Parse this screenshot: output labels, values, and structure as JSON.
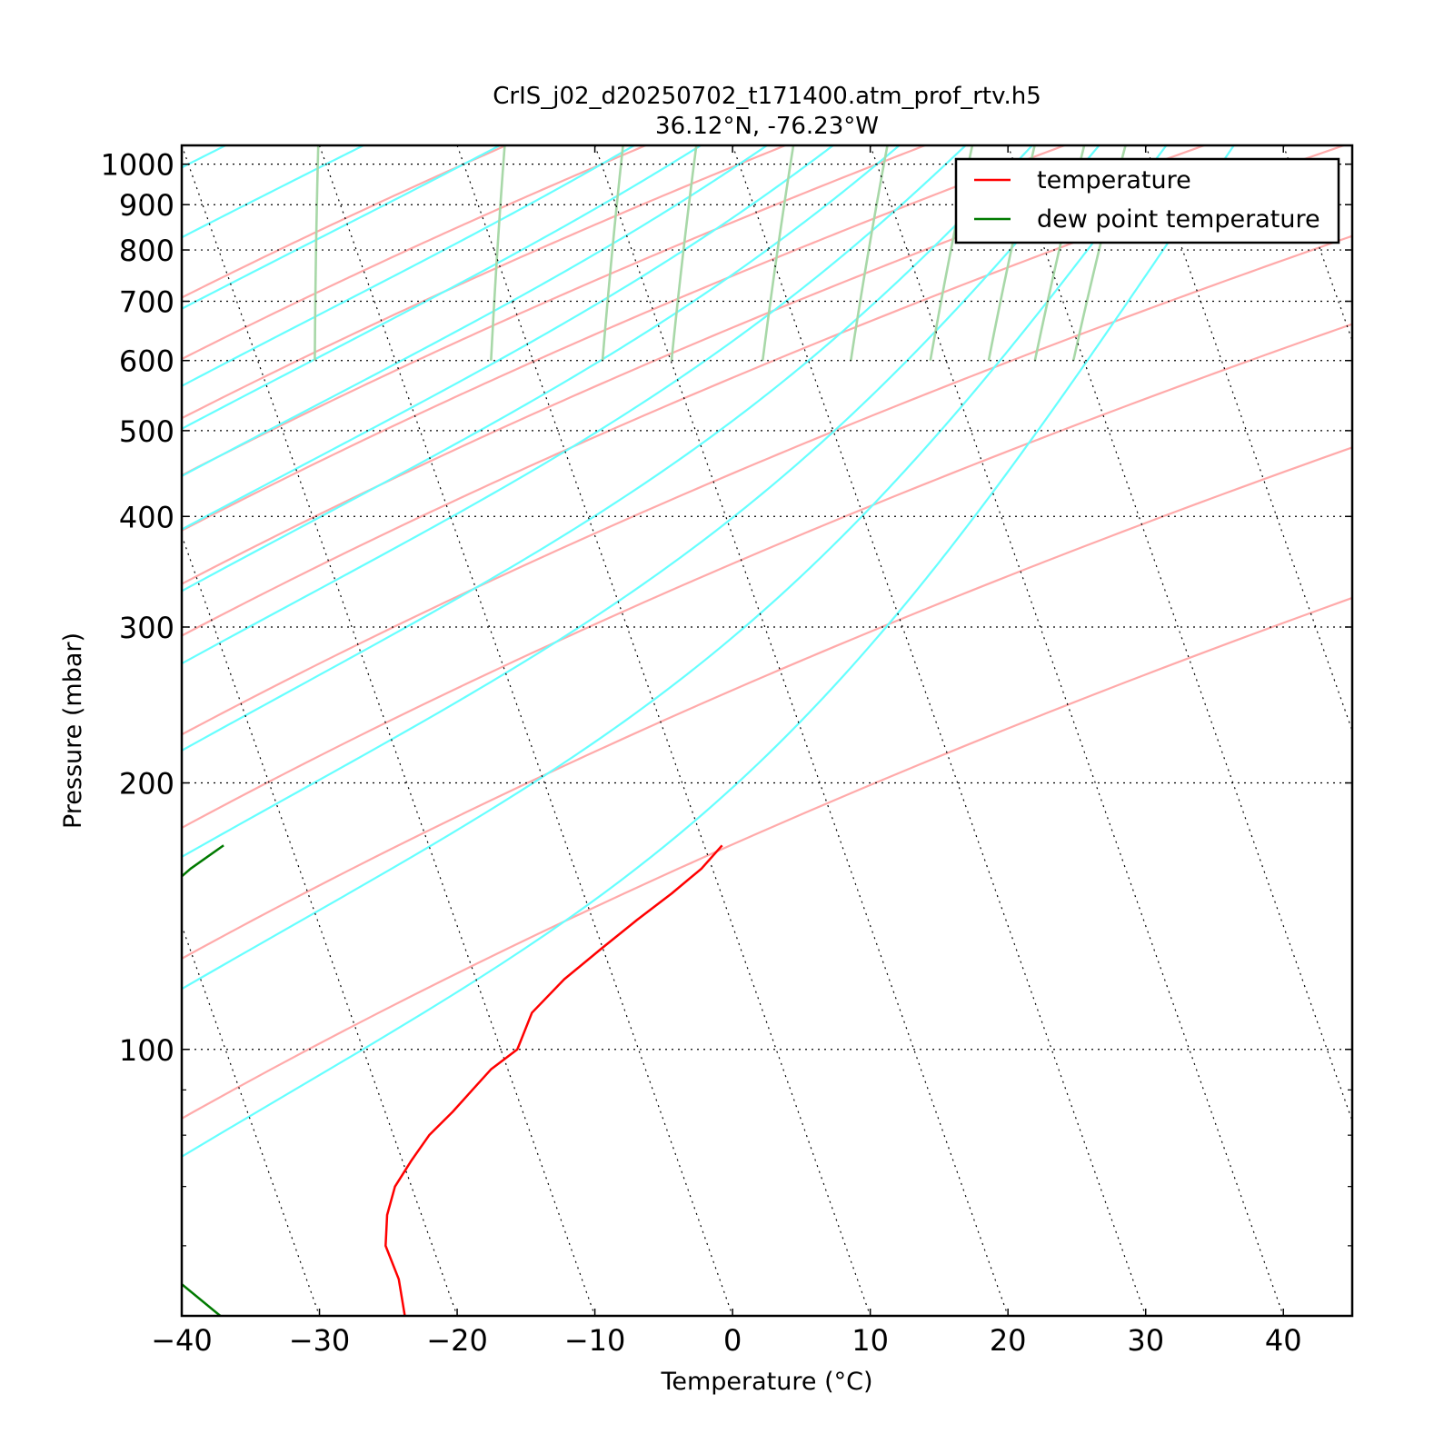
{
  "chart_data": {
    "type": "line",
    "chart_kind": "skew-T log-p diagram",
    "title": "CrIS_j02_d20250702_t171400.atm_prof_rtv.h5",
    "subtitle": "36.12$^\\circ$N, -76.23$^\\circ$W",
    "subtitle_display": "36.12°N, -76.23°W",
    "xlabel": "Temperature (°C)",
    "ylabel": "Pressure (mbar)",
    "x_axis": {
      "range": [
        -40,
        45
      ],
      "ticks": [
        -40,
        -30,
        -20,
        -10,
        0,
        10,
        20,
        30,
        40
      ],
      "tick_labels": [
        "−40",
        "−30",
        "−20",
        "−10",
        "0",
        "10",
        "20",
        "30",
        "40"
      ]
    },
    "y_axis": {
      "scale": "log",
      "reversed": true,
      "range": [
        1050,
        50
      ],
      "ticks": [
        100,
        200,
        300,
        400,
        500,
        600,
        700,
        800,
        900,
        1000
      ],
      "tick_labels": [
        "100",
        "200",
        "300",
        "400",
        "500",
        "600",
        "700",
        "800",
        "900",
        "1000"
      ]
    },
    "grid": true,
    "legend": {
      "placement": "top-right",
      "entries": [
        "temperature",
        "dew point temperature"
      ]
    },
    "colors": {
      "temperature": "#ff0000",
      "dewpoint": "#007a00",
      "dry_adiabat": "#ffaaaa",
      "moist_adiabat": "#66ffff",
      "mixing_ratio": "#a8d8a8",
      "isotherm": "#000000"
    },
    "series": [
      {
        "name": "temperature",
        "pressure": [
          50,
          55,
          60,
          65,
          70,
          75,
          80,
          85,
          90,
          95,
          100,
          110,
          120,
          130,
          140,
          150,
          160,
          170
        ],
        "temperature": [
          -53.8,
          -53.3,
          -53.4,
          -52.5,
          -51.2,
          -49.3,
          -47.4,
          -45.1,
          -43.1,
          -41.2,
          -38.8,
          -36.8,
          -33.6,
          -30.1,
          -26.8,
          -23.6,
          -20.8,
          -18.7
        ]
      },
      {
        "name": "dew point temperature",
        "pressure": [
          50,
          55,
          60,
          65,
          70,
          75,
          80,
          85,
          90,
          95,
          100,
          110,
          120,
          130,
          140,
          150,
          160,
          170
        ],
        "temperature": [
          -67.2,
          -69.5,
          -70.6,
          -71.4,
          -72.4,
          -73.0,
          -73.0,
          -73.0,
          -72.9,
          -72.8,
          -71.9,
          -70.6,
          -68.5,
          -66.3,
          -63.1,
          -60.6,
          -57.9,
          -54.9
        ]
      }
    ],
    "background_lines": {
      "isotherms_C": [
        -130,
        -120,
        -110,
        -100,
        -90,
        -80,
        -70,
        -60,
        -50,
        -40,
        -30,
        -20,
        -10,
        0,
        10,
        20,
        30,
        40
      ],
      "dry_adiabats_theta_C": [
        -20,
        -10,
        0,
        10,
        20,
        30,
        40,
        60,
        80,
        110,
        150
      ],
      "moist_adiabats_thetaw_C": [
        -60,
        -50,
        -40,
        -30,
        -20,
        -10,
        -5,
        0,
        5,
        10,
        15,
        20,
        25,
        30,
        35
      ],
      "mixing_ratios_gkg": [
        0.3,
        1,
        2,
        3,
        5,
        8,
        12,
        16,
        20,
        24
      ]
    }
  }
}
